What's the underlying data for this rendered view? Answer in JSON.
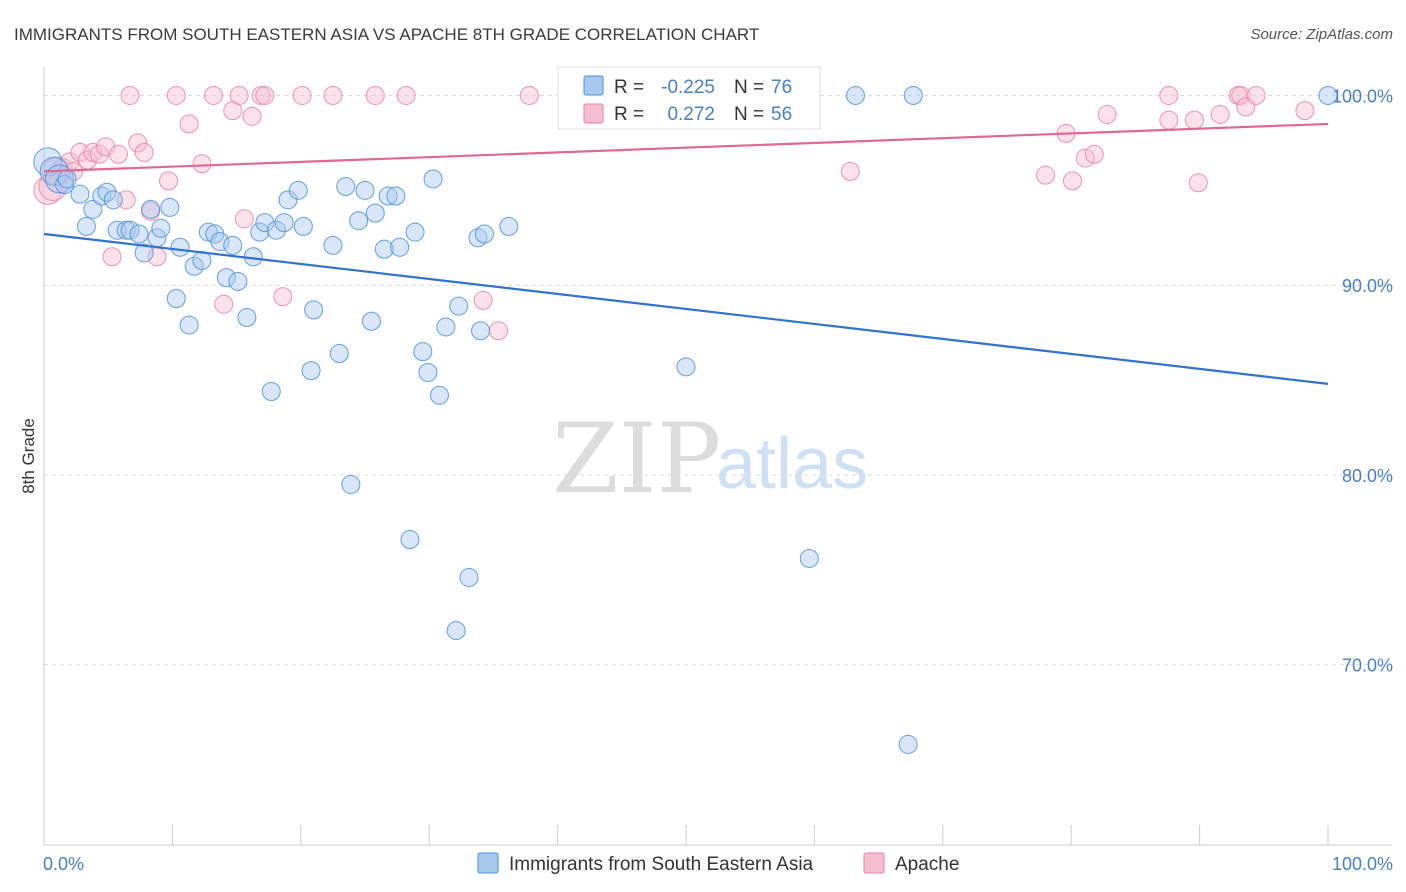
{
  "header": {
    "title": "IMMIGRANTS FROM SOUTH EASTERN ASIA VS APACHE 8TH GRADE CORRELATION CHART",
    "source": "Source: ZipAtlas.com"
  },
  "watermark": {
    "part1": "ZIP",
    "part2": "atlas"
  },
  "colors": {
    "blue": "#4a8fdd",
    "blue_fill": "#a9c8ee",
    "blue_line": "#2f72d0",
    "pink": "#ec7fa3",
    "pink_fill": "#f6bfd0",
    "pink_line": "#e0688f",
    "tick_text": "#4a7fc8",
    "grid": "#d9d9d9"
  },
  "stats": {
    "r_label": "R =",
    "n_label": "N =",
    "rows": [
      {
        "series": "blue",
        "r": "-0.225",
        "n": "76"
      },
      {
        "series": "pink",
        "r": "0.272",
        "n": "56"
      }
    ]
  },
  "chart_data": {
    "type": "scatter",
    "title": "IMMIGRANTS FROM SOUTH EASTERN ASIA VS APACHE 8TH GRADE CORRELATION CHART",
    "xlabel": "",
    "ylabel": "8th Grade",
    "xlim": [
      0,
      100
    ],
    "ylim": [
      60.5,
      101.5
    ],
    "x_tick_labels": [
      {
        "value": 0,
        "label": "0.0%"
      },
      {
        "value": 100,
        "label": "100.0%"
      }
    ],
    "y_tick_labels": [
      {
        "value": 100,
        "label": "100.0%"
      },
      {
        "value": 90,
        "label": "90.0%"
      },
      {
        "value": 80,
        "label": "80.0%"
      },
      {
        "value": 70,
        "label": "70.0%"
      }
    ],
    "y_grid": [
      100,
      90,
      80,
      70
    ],
    "grid": true,
    "legend_position": "bottom-center",
    "series": [
      {
        "name": "Immigrants from South Eastern Asia",
        "color_key": "blue",
        "trend": {
          "x": [
            0,
            100
          ],
          "y": [
            92.7,
            84.8
          ]
        },
        "points": [
          [
            0.3,
            96.5
          ],
          [
            0.8,
            96.0
          ],
          [
            1.2,
            95.6
          ],
          [
            1.6,
            95.3
          ],
          [
            1.8,
            95.6
          ],
          [
            2.8,
            94.8
          ],
          [
            3.3,
            93.1
          ],
          [
            3.8,
            94.0
          ],
          [
            4.5,
            94.7
          ],
          [
            4.9,
            94.9
          ],
          [
            5.4,
            94.5
          ],
          [
            5.7,
            92.9
          ],
          [
            6.4,
            92.9
          ],
          [
            6.7,
            92.9
          ],
          [
            7.4,
            92.7
          ],
          [
            7.8,
            91.7
          ],
          [
            8.3,
            94.0
          ],
          [
            8.8,
            92.5
          ],
          [
            9.1,
            93.0
          ],
          [
            9.8,
            94.1
          ],
          [
            10.3,
            89.3
          ],
          [
            10.6,
            92.0
          ],
          [
            11.3,
            87.9
          ],
          [
            11.7,
            91.0
          ],
          [
            12.3,
            91.3
          ],
          [
            12.8,
            92.8
          ],
          [
            13.3,
            92.7
          ],
          [
            13.7,
            92.3
          ],
          [
            14.2,
            90.4
          ],
          [
            14.7,
            92.1
          ],
          [
            15.1,
            90.2
          ],
          [
            15.8,
            88.3
          ],
          [
            16.3,
            91.5
          ],
          [
            16.8,
            92.8
          ],
          [
            17.2,
            93.3
          ],
          [
            17.7,
            84.4
          ],
          [
            18.1,
            92.9
          ],
          [
            18.7,
            93.3
          ],
          [
            19.0,
            94.5
          ],
          [
            19.8,
            95.0
          ],
          [
            20.2,
            93.1
          ],
          [
            21.0,
            88.7
          ],
          [
            20.8,
            85.5
          ],
          [
            22.5,
            92.1
          ],
          [
            23.0,
            86.4
          ],
          [
            23.5,
            95.2
          ],
          [
            23.9,
            79.5
          ],
          [
            24.5,
            93.4
          ],
          [
            25.0,
            95.0
          ],
          [
            25.5,
            88.1
          ],
          [
            25.8,
            93.8
          ],
          [
            26.5,
            91.9
          ],
          [
            26.8,
            94.7
          ],
          [
            27.4,
            94.7
          ],
          [
            27.7,
            92.0
          ],
          [
            28.5,
            76.6
          ],
          [
            28.9,
            92.8
          ],
          [
            29.5,
            86.5
          ],
          [
            29.9,
            85.4
          ],
          [
            30.3,
            95.6
          ],
          [
            30.8,
            84.2
          ],
          [
            31.3,
            87.8
          ],
          [
            32.1,
            71.8
          ],
          [
            32.3,
            88.9
          ],
          [
            33.1,
            74.6
          ],
          [
            33.8,
            92.5
          ],
          [
            34.0,
            87.6
          ],
          [
            34.3,
            92.7
          ],
          [
            36.2,
            93.1
          ],
          [
            43.3,
            100.0
          ],
          [
            50.0,
            85.7
          ],
          [
            59.6,
            75.6
          ],
          [
            63.2,
            100.0
          ],
          [
            67.3,
            65.8
          ],
          [
            67.7,
            100.0
          ],
          [
            100.0,
            100.0
          ]
        ]
      },
      {
        "name": "Apache",
        "color_key": "pink",
        "trend": {
          "x": [
            0,
            100
          ],
          "y": [
            96.0,
            98.5
          ]
        },
        "points": [
          [
            0.3,
            95.0
          ],
          [
            0.7,
            95.2
          ],
          [
            1.0,
            96.0
          ],
          [
            1.5,
            96.2
          ],
          [
            2.0,
            96.5
          ],
          [
            2.3,
            96.0
          ],
          [
            2.8,
            97.0
          ],
          [
            3.4,
            96.6
          ],
          [
            3.8,
            97.0
          ],
          [
            4.3,
            96.9
          ],
          [
            4.8,
            97.3
          ],
          [
            5.3,
            91.5
          ],
          [
            5.8,
            96.9
          ],
          [
            6.4,
            94.5
          ],
          [
            6.7,
            100.0
          ],
          [
            7.3,
            97.5
          ],
          [
            7.8,
            97.0
          ],
          [
            8.3,
            93.9
          ],
          [
            8.8,
            91.5
          ],
          [
            9.7,
            95.5
          ],
          [
            10.3,
            100.0
          ],
          [
            11.3,
            98.5
          ],
          [
            12.3,
            96.4
          ],
          [
            13.2,
            100.0
          ],
          [
            14.0,
            89.0
          ],
          [
            14.7,
            99.2
          ],
          [
            15.2,
            100.0
          ],
          [
            15.6,
            93.5
          ],
          [
            16.2,
            98.9
          ],
          [
            16.9,
            100.0
          ],
          [
            17.2,
            100.0
          ],
          [
            18.6,
            89.4
          ],
          [
            20.1,
            100.0
          ],
          [
            22.5,
            100.0
          ],
          [
            25.8,
            100.0
          ],
          [
            28.2,
            100.0
          ],
          [
            34.2,
            89.2
          ],
          [
            35.4,
            87.6
          ],
          [
            37.8,
            100.0
          ],
          [
            62.8,
            96.0
          ],
          [
            78.0,
            95.8
          ],
          [
            79.6,
            98.0
          ],
          [
            80.1,
            95.5
          ],
          [
            81.1,
            96.7
          ],
          [
            81.8,
            96.9
          ],
          [
            82.8,
            99.0
          ],
          [
            87.6,
            100.0
          ],
          [
            87.6,
            98.7
          ],
          [
            89.6,
            98.7
          ],
          [
            89.9,
            95.4
          ],
          [
            91.6,
            99.0
          ],
          [
            93.0,
            100.0
          ],
          [
            93.2,
            100.0
          ],
          [
            93.6,
            99.4
          ],
          [
            94.4,
            100.0
          ],
          [
            98.2,
            99.2
          ]
        ]
      }
    ]
  }
}
